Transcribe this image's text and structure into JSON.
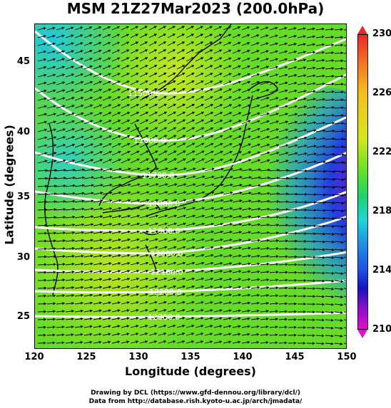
{
  "title": "MSM 21Z27Mar2023 (200.0hPa)",
  "xaxis": {
    "label": "Longitude (degrees)",
    "ticks": [
      "120",
      "125",
      "130",
      "135",
      "140",
      "145",
      "150"
    ]
  },
  "yaxis": {
    "label": "Latitude  (degrees)",
    "ticks": [
      "25",
      "30",
      "35",
      "40",
      "45"
    ]
  },
  "colorbar": {
    "labels": [
      "230",
      "226",
      "222",
      "218",
      "214",
      "210"
    ]
  },
  "credits": {
    "line1": "Drawing by DCL (https://www.gfd-dennou.org/library/dcl/)",
    "line2": "Data from http://database.rish.kyoto-u.ac.jp/arch/jmadata/"
  },
  "contours": [
    "11500.0",
    "11600.0",
    "11700.0",
    "11800.0",
    "11900.0",
    "12000.0",
    "12100.0",
    "12200.0",
    "12300.0"
  ],
  "chart_data": {
    "type": "heatmap",
    "title": "MSM 21Z27Mar2023 (200.0hPa)",
    "xlabel": "Longitude (degrees)",
    "ylabel": "Latitude  (degrees)",
    "xlim": [
      120,
      150
    ],
    "ylim": [
      22.4,
      47.6
    ],
    "color_range": [
      210,
      230
    ],
    "contour_levels": [
      11500,
      11600,
      11700,
      11800,
      11900,
      12000,
      12100,
      12200,
      12300
    ]
  }
}
